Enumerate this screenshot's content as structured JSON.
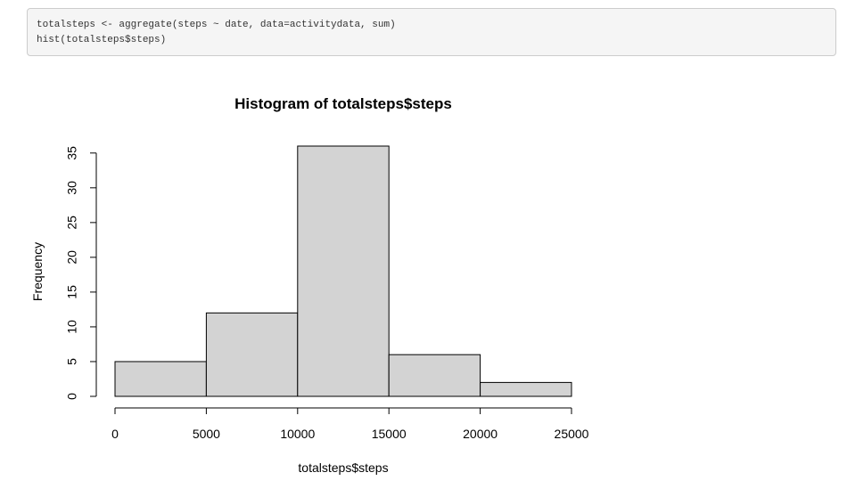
{
  "code": {
    "lines": [
      "totalsteps <- aggregate(steps ~ date, data=activitydata, sum)",
      "hist(totalsteps$steps)"
    ]
  },
  "chart_data": {
    "type": "bar",
    "title": "Histogram of totalsteps$steps",
    "xlabel": "totalsteps$steps",
    "ylabel": "Frequency",
    "bins": [
      {
        "start": 0,
        "end": 5000,
        "count": 5
      },
      {
        "start": 5000,
        "end": 10000,
        "count": 12
      },
      {
        "start": 10000,
        "end": 15000,
        "count": 36
      },
      {
        "start": 15000,
        "end": 20000,
        "count": 6
      },
      {
        "start": 20000,
        "end": 25000,
        "count": 2
      }
    ],
    "xticks": [
      0,
      5000,
      10000,
      15000,
      20000,
      25000
    ],
    "yticks": [
      0,
      5,
      10,
      15,
      20,
      25,
      30,
      35
    ],
    "xlim": [
      0,
      25000
    ],
    "ylim": [
      0,
      36
    ],
    "bar_color": "#d3d3d3",
    "grid": false
  }
}
